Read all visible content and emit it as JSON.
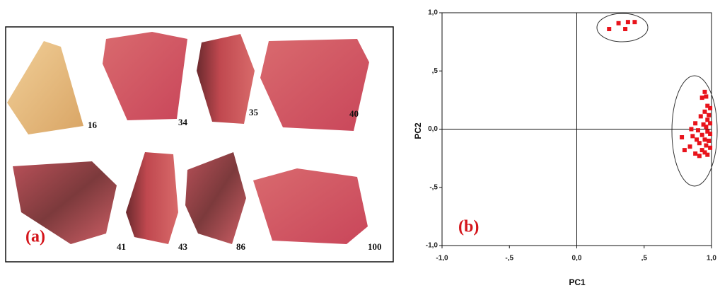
{
  "panel_a": {
    "label": "(a)",
    "sherds": [
      "16",
      "34",
      "35",
      "40",
      "41",
      "43",
      "86",
      "100"
    ]
  },
  "chart_data": {
    "type": "scatter",
    "annotation": "(b)",
    "xlabel": "PC1",
    "ylabel": "PC2",
    "xlim": [
      -1.0,
      1.0
    ],
    "ylim": [
      -1.0,
      1.0
    ],
    "xticks": [
      {
        "value": -1.0,
        "label": "-1,0"
      },
      {
        "value": -0.5,
        "label": "-,5"
      },
      {
        "value": 0,
        "label": "0,0"
      },
      {
        "value": 0.5,
        "label": ",5"
      },
      {
        "value": 1.0,
        "label": "1,0"
      }
    ],
    "yticks": [
      {
        "value": -1.0,
        "label": "-1,0"
      },
      {
        "value": -0.5,
        "label": "-,5"
      },
      {
        "value": 0,
        "label": "0,0"
      },
      {
        "value": 0.5,
        "label": ",5"
      },
      {
        "value": 1.0,
        "label": "1,0"
      }
    ],
    "series": [
      {
        "color": "#e8131b",
        "x": [
          0.24,
          0.31,
          0.36,
          0.38,
          0.43,
          0.95,
          0.96,
          0.93,
          0.97,
          0.99,
          0.95,
          0.98,
          0.92,
          0.97,
          0.99,
          0.94,
          0.96,
          0.88,
          0.85,
          0.9,
          0.97,
          0.99,
          0.93,
          0.78,
          0.86,
          0.95,
          0.98,
          0.91,
          0.96,
          0.99,
          0.93,
          0.8,
          0.88,
          0.91,
          0.95,
          0.97,
          0.84,
          0.89
        ],
        "values": [
          0.86,
          0.91,
          0.86,
          0.92,
          0.92,
          0.32,
          0.28,
          0.27,
          0.2,
          0.18,
          0.15,
          0.12,
          0.11,
          0.08,
          0.05,
          0.04,
          0.02,
          0.05,
          0.0,
          -0.01,
          -0.02,
          -0.04,
          -0.05,
          -0.07,
          -0.06,
          -0.09,
          -0.1,
          -0.12,
          -0.14,
          -0.16,
          -0.18,
          -0.18,
          -0.21,
          -0.23,
          -0.2,
          -0.22,
          -0.15,
          -0.09
        ]
      }
    ]
  }
}
